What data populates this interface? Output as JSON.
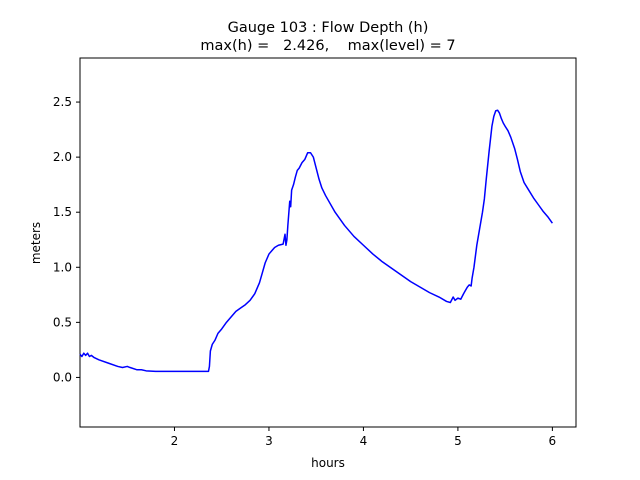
{
  "chart_data": {
    "type": "line",
    "title": "Gauge 103 : Flow Depth (h)",
    "subtitle": "max(h) =   2.426,    max(level) = 7",
    "xlabel": "hours",
    "ylabel": "meters",
    "xlim": [
      1.0,
      6.25
    ],
    "ylim": [
      -0.45,
      2.9
    ],
    "xticks": [
      2,
      3,
      4,
      5,
      6
    ],
    "yticks": [
      0.0,
      0.5,
      1.0,
      1.5,
      2.0,
      2.5
    ],
    "xtick_labels": [
      "2",
      "3",
      "4",
      "5",
      "6"
    ],
    "ytick_labels": [
      "0.0",
      "0.5",
      "1.0",
      "1.5",
      "2.0",
      "2.5"
    ],
    "grid": false,
    "series": [
      {
        "color": "#0000ff",
        "x": [
          1.0,
          1.02,
          1.04,
          1.06,
          1.08,
          1.1,
          1.12,
          1.15,
          1.2,
          1.3,
          1.4,
          1.45,
          1.5,
          1.53,
          1.6,
          1.65,
          1.7,
          1.8,
          2.0,
          2.2,
          2.36,
          2.37,
          2.38,
          2.4,
          2.43,
          2.46,
          2.5,
          2.55,
          2.6,
          2.65,
          2.7,
          2.75,
          2.8,
          2.85,
          2.9,
          2.93,
          2.96,
          3.0,
          3.03,
          3.06,
          3.1,
          3.15,
          3.17,
          3.18,
          3.19,
          3.2,
          3.22,
          3.23,
          3.24,
          3.26,
          3.28,
          3.3,
          3.32,
          3.35,
          3.38,
          3.41,
          3.44,
          3.47,
          3.5,
          3.53,
          3.56,
          3.6,
          3.7,
          3.8,
          3.9,
          4.0,
          4.1,
          4.2,
          4.3,
          4.4,
          4.5,
          4.6,
          4.7,
          4.8,
          4.88,
          4.92,
          4.95,
          4.97,
          5.0,
          5.03,
          5.06,
          5.08,
          5.1,
          5.12,
          5.14,
          5.15,
          5.17,
          5.2,
          5.23,
          5.26,
          5.28,
          5.3,
          5.33,
          5.36,
          5.38,
          5.4,
          5.42,
          5.44,
          5.46,
          5.48,
          5.5,
          5.53,
          5.56,
          5.6,
          5.63,
          5.66,
          5.7,
          5.75,
          5.8,
          5.85,
          5.9,
          5.95,
          6.0
        ],
        "y": [
          0.21,
          0.19,
          0.22,
          0.2,
          0.22,
          0.19,
          0.2,
          0.18,
          0.16,
          0.13,
          0.1,
          0.09,
          0.1,
          0.09,
          0.07,
          0.07,
          0.06,
          0.055,
          0.055,
          0.055,
          0.055,
          0.1,
          0.24,
          0.3,
          0.34,
          0.4,
          0.44,
          0.5,
          0.55,
          0.6,
          0.63,
          0.66,
          0.7,
          0.76,
          0.86,
          0.95,
          1.04,
          1.12,
          1.15,
          1.18,
          1.2,
          1.21,
          1.3,
          1.2,
          1.25,
          1.38,
          1.6,
          1.55,
          1.7,
          1.75,
          1.82,
          1.88,
          1.9,
          1.95,
          1.98,
          2.04,
          2.04,
          2.0,
          1.9,
          1.8,
          1.72,
          1.65,
          1.5,
          1.38,
          1.28,
          1.2,
          1.12,
          1.05,
          0.99,
          0.93,
          0.87,
          0.82,
          0.77,
          0.73,
          0.69,
          0.68,
          0.73,
          0.7,
          0.72,
          0.71,
          0.76,
          0.79,
          0.82,
          0.84,
          0.83,
          0.9,
          1.0,
          1.2,
          1.35,
          1.5,
          1.62,
          1.8,
          2.05,
          2.28,
          2.37,
          2.42,
          2.426,
          2.4,
          2.35,
          2.31,
          2.28,
          2.24,
          2.18,
          2.08,
          1.98,
          1.87,
          1.77,
          1.7,
          1.63,
          1.57,
          1.51,
          1.46,
          1.4
        ]
      }
    ]
  }
}
